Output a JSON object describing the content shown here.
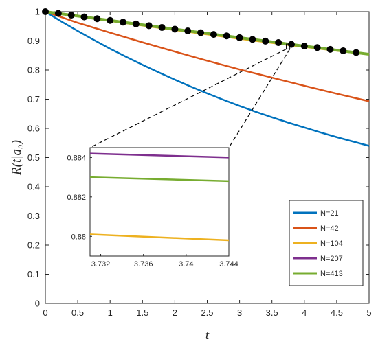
{
  "chart_data": {
    "type": "line",
    "xlabel": "t",
    "ylabel": "R(t|a₀)",
    "xlim": [
      0,
      5
    ],
    "ylim": [
      0,
      1
    ],
    "xticks": [
      0,
      0.5,
      1,
      1.5,
      2,
      2.5,
      3,
      3.5,
      4,
      4.5,
      5
    ],
    "xtick_labels": [
      "0",
      "0.5",
      "1",
      "1.5",
      "2",
      "2.5",
      "3",
      "3.5",
      "4",
      "4.5",
      "5"
    ],
    "yticks": [
      0,
      0.1,
      0.2,
      0.3,
      0.4,
      0.5,
      0.6,
      0.7,
      0.8,
      0.9,
      1
    ],
    "ytick_labels": [
      "0",
      "0.1",
      "0.2",
      "0.3",
      "0.4",
      "0.5",
      "0.6",
      "0.7",
      "0.8",
      "0.9",
      "1"
    ],
    "grid": false,
    "legend_position": "bottom-right",
    "series": [
      {
        "name": "N=21",
        "color": "#0072BD",
        "x": [
          0,
          0.25,
          0.5,
          0.75,
          1,
          1.25,
          1.5,
          1.75,
          2,
          2.25,
          2.5,
          2.75,
          3,
          3.25,
          3.5,
          3.75,
          4,
          4.25,
          4.5,
          4.75,
          5
        ],
        "y": [
          1,
          0.966,
          0.934,
          0.903,
          0.873,
          0.845,
          0.818,
          0.792,
          0.767,
          0.743,
          0.72,
          0.698,
          0.677,
          0.657,
          0.638,
          0.62,
          0.603,
          0.586,
          0.57,
          0.555,
          0.54
        ]
      },
      {
        "name": "N=42",
        "color": "#D95319",
        "x": [
          0,
          0.5,
          1,
          1.5,
          2,
          2.5,
          3,
          3.5,
          4,
          4.5,
          5
        ],
        "y": [
          1,
          0.962,
          0.928,
          0.895,
          0.863,
          0.832,
          0.802,
          0.774,
          0.746,
          0.719,
          0.693
        ]
      },
      {
        "name": "N=104",
        "color": "#EDB120",
        "x": [
          0,
          1,
          2,
          3,
          4,
          5
        ],
        "y": [
          1,
          0.968,
          0.937,
          0.907,
          0.879,
          0.853
        ]
      },
      {
        "name": "N=207",
        "color": "#7E2F8E",
        "x": [
          0,
          1,
          2,
          3,
          4,
          5
        ],
        "y": [
          1,
          0.971,
          0.941,
          0.912,
          0.883,
          0.855
        ]
      },
      {
        "name": "N=413",
        "color": "#77AC30",
        "x": [
          0,
          1,
          2,
          3,
          4,
          5
        ],
        "y": [
          1,
          0.97,
          0.94,
          0.911,
          0.882,
          0.854
        ]
      }
    ],
    "markers": {
      "color": "#000000",
      "x": [
        0,
        0.2,
        0.4,
        0.6,
        0.8,
        1,
        1.2,
        1.4,
        1.6,
        1.8,
        2,
        2.2,
        2.4,
        2.6,
        2.8,
        3,
        3.2,
        3.4,
        3.6,
        3.8,
        4,
        4.2,
        4.4,
        4.6,
        4.8
      ],
      "y": [
        1,
        0.994,
        0.988,
        0.982,
        0.976,
        0.97,
        0.964,
        0.958,
        0.952,
        0.946,
        0.94,
        0.934,
        0.928,
        0.922,
        0.917,
        0.911,
        0.905,
        0.899,
        0.894,
        0.888,
        0.882,
        0.877,
        0.871,
        0.866,
        0.86
      ]
    },
    "zoom_box": {
      "x": [
        3.732,
        3.744
      ],
      "y": [
        0.879,
        0.8845
      ]
    },
    "inset": {
      "xlim": [
        3.731,
        3.744
      ],
      "ylim": [
        0.879,
        0.8845
      ],
      "xticks": [
        3.732,
        3.736,
        3.74,
        3.744
      ],
      "xtick_labels": [
        "3.732",
        "3.736",
        "3.74",
        "3.744"
      ],
      "yticks": [
        0.88,
        0.882,
        0.884
      ],
      "ytick_labels": [
        "0.88",
        "0.882",
        "0.884"
      ],
      "series": [
        {
          "name": "N=104",
          "color": "#EDB120",
          "x": [
            3.731,
            3.744
          ],
          "y": [
            0.8801,
            0.8798
          ]
        },
        {
          "name": "N=207",
          "color": "#7E2F8E",
          "x": [
            3.731,
            3.744
          ],
          "y": [
            0.8842,
            0.884
          ]
        },
        {
          "name": "N=413",
          "color": "#77AC30",
          "x": [
            3.731,
            3.744
          ],
          "y": [
            0.883,
            0.8828
          ]
        }
      ]
    }
  }
}
